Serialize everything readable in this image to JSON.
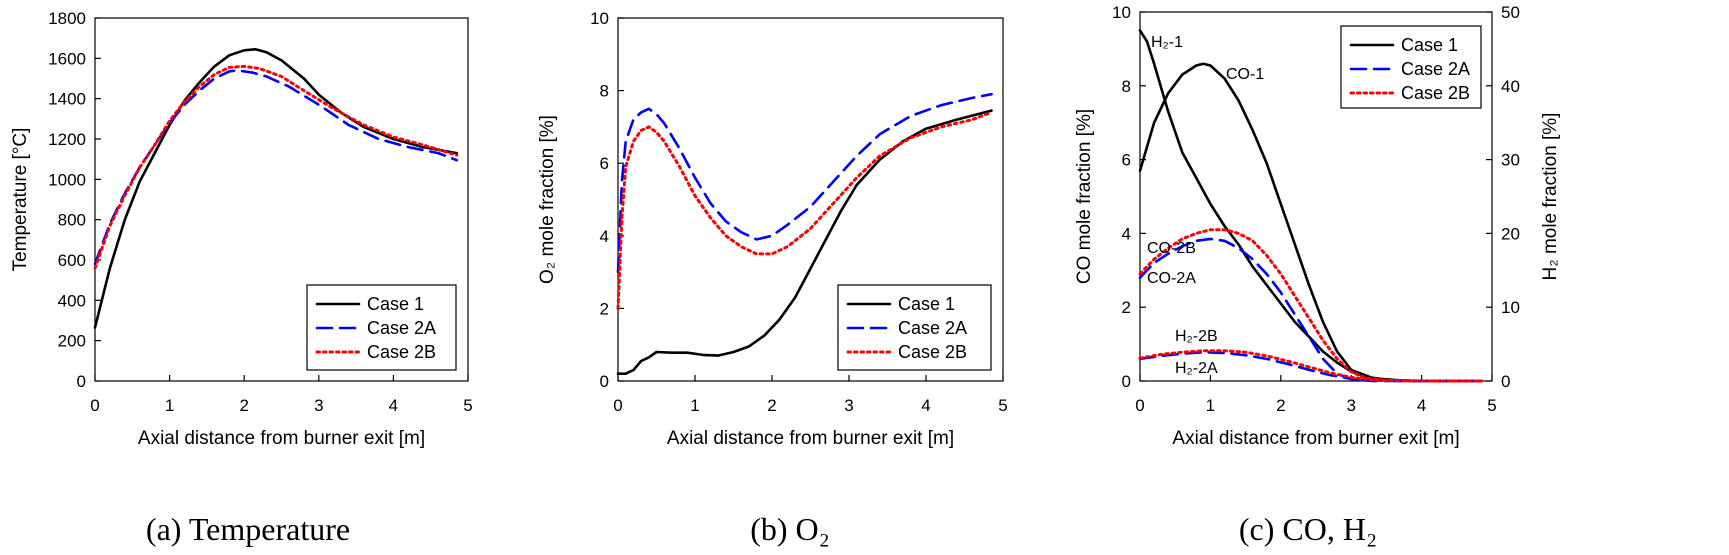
{
  "chart_data": [
    {
      "type": "line",
      "caption": "(a) Temperature",
      "xlabel": "Axial distance from burner exit [m]",
      "ylabel": "Temperature [°C]",
      "xlim": [
        0,
        5
      ],
      "ylim": [
        0,
        1800
      ],
      "xticks": [
        0,
        1,
        2,
        3,
        4,
        5
      ],
      "yticks": [
        0,
        200,
        400,
        600,
        800,
        1000,
        1200,
        1400,
        1600,
        1800
      ],
      "legend": {
        "position": "bottom-right"
      },
      "series": [
        {
          "name": "Case 1",
          "style": "solid",
          "color": "#000000",
          "x": [
            0,
            0.2,
            0.4,
            0.6,
            0.8,
            1.0,
            1.2,
            1.4,
            1.6,
            1.8,
            2.0,
            2.15,
            2.3,
            2.5,
            2.8,
            3.0,
            3.3,
            3.6,
            4.0,
            4.4,
            4.85
          ],
          "y": [
            265,
            560,
            800,
            990,
            1130,
            1270,
            1390,
            1480,
            1560,
            1615,
            1640,
            1645,
            1630,
            1590,
            1500,
            1420,
            1330,
            1260,
            1200,
            1160,
            1130
          ]
        },
        {
          "name": "Case 2A",
          "style": "dashed",
          "color": "#0000ff",
          "x": [
            0,
            0.2,
            0.4,
            0.6,
            0.8,
            1.0,
            1.2,
            1.4,
            1.6,
            1.8,
            1.9,
            2.1,
            2.3,
            2.6,
            3.0,
            3.4,
            3.8,
            4.2,
            4.6,
            4.85
          ],
          "y": [
            580,
            780,
            930,
            1060,
            1170,
            1280,
            1370,
            1440,
            1500,
            1535,
            1540,
            1530,
            1510,
            1460,
            1370,
            1270,
            1200,
            1160,
            1130,
            1095
          ]
        },
        {
          "name": "Case 2B",
          "style": "dotted",
          "color": "#ff0000",
          "x": [
            0,
            0.2,
            0.4,
            0.6,
            0.8,
            1.0,
            1.2,
            1.4,
            1.6,
            1.8,
            2.0,
            2.2,
            2.5,
            2.8,
            3.2,
            3.6,
            4.0,
            4.4,
            4.85
          ],
          "y": [
            560,
            770,
            920,
            1060,
            1170,
            1290,
            1385,
            1460,
            1520,
            1555,
            1560,
            1550,
            1510,
            1440,
            1350,
            1270,
            1210,
            1170,
            1120
          ]
        }
      ]
    },
    {
      "type": "line",
      "caption": "(b) O₂",
      "xlabel": "Axial distance from burner exit [m]",
      "ylabel": "O₂ mole fraction [%]",
      "xlim": [
        0,
        5
      ],
      "ylim": [
        0,
        10
      ],
      "xticks": [
        0,
        1,
        2,
        3,
        4,
        5
      ],
      "yticks": [
        0,
        2,
        4,
        6,
        8,
        10
      ],
      "legend": {
        "position": "bottom-right"
      },
      "series": [
        {
          "name": "Case 1",
          "style": "solid",
          "color": "#000000",
          "x": [
            0,
            0.1,
            0.2,
            0.3,
            0.4,
            0.5,
            0.7,
            0.9,
            1.1,
            1.3,
            1.5,
            1.7,
            1.9,
            2.1,
            2.3,
            2.5,
            2.7,
            2.9,
            3.1,
            3.4,
            3.7,
            4.0,
            4.4,
            4.85
          ],
          "y": [
            0.2,
            0.2,
            0.3,
            0.55,
            0.65,
            0.8,
            0.78,
            0.78,
            0.72,
            0.7,
            0.8,
            0.95,
            1.25,
            1.7,
            2.3,
            3.1,
            3.9,
            4.7,
            5.4,
            6.1,
            6.6,
            6.95,
            7.2,
            7.45
          ]
        },
        {
          "name": "Case 2A",
          "style": "dashed",
          "color": "#0000ff",
          "x": [
            0,
            0.05,
            0.1,
            0.2,
            0.3,
            0.4,
            0.5,
            0.6,
            0.8,
            1.0,
            1.2,
            1.4,
            1.6,
            1.8,
            2.0,
            2.2,
            2.5,
            2.8,
            3.1,
            3.4,
            3.8,
            4.2,
            4.6,
            4.85
          ],
          "y": [
            3.0,
            5.5,
            6.6,
            7.2,
            7.4,
            7.5,
            7.35,
            7.1,
            6.4,
            5.6,
            4.9,
            4.4,
            4.1,
            3.9,
            4.0,
            4.3,
            4.8,
            5.5,
            6.2,
            6.8,
            7.3,
            7.6,
            7.8,
            7.9
          ]
        },
        {
          "name": "Case 2B",
          "style": "dotted",
          "color": "#ff0000",
          "x": [
            0,
            0.05,
            0.1,
            0.2,
            0.3,
            0.4,
            0.5,
            0.6,
            0.8,
            1.0,
            1.2,
            1.4,
            1.6,
            1.8,
            2.0,
            2.2,
            2.5,
            2.8,
            3.1,
            3.4,
            3.8,
            4.2,
            4.6,
            4.85
          ],
          "y": [
            2.0,
            4.5,
            5.9,
            6.6,
            6.9,
            7.0,
            6.85,
            6.6,
            5.9,
            5.1,
            4.5,
            4.0,
            3.7,
            3.5,
            3.5,
            3.7,
            4.2,
            4.9,
            5.6,
            6.2,
            6.7,
            7.0,
            7.2,
            7.4
          ]
        }
      ]
    },
    {
      "type": "line",
      "caption": "(c) CO, H₂",
      "xlabel": "Axial distance from burner exit [m]",
      "ylabel": "CO mole fraction [%]",
      "y2label": "H₂ mole fraction [%]",
      "xlim": [
        0,
        5
      ],
      "ylim": [
        0,
        10
      ],
      "y2lim": [
        0,
        50
      ],
      "xticks": [
        0,
        1,
        2,
        3,
        4,
        5
      ],
      "yticks": [
        0,
        2,
        4,
        6,
        8,
        10
      ],
      "y2ticks": [
        0,
        10,
        20,
        30,
        40,
        50
      ],
      "legend": {
        "position": "top-right"
      },
      "series": [
        {
          "name": "Case 1",
          "style": "solid",
          "color": "#000000",
          "axis": "left",
          "label": "CO-1",
          "x": [
            0,
            0.2,
            0.4,
            0.6,
            0.8,
            0.9,
            1.0,
            1.2,
            1.4,
            1.6,
            1.8,
            2.0,
            2.2,
            2.4,
            2.6,
            2.8,
            3.0,
            3.3,
            3.6,
            4.0,
            4.5,
            4.85
          ],
          "y": [
            5.7,
            7.0,
            7.8,
            8.3,
            8.55,
            8.6,
            8.55,
            8.2,
            7.6,
            6.8,
            5.9,
            4.8,
            3.7,
            2.6,
            1.6,
            0.8,
            0.3,
            0.08,
            0.02,
            0.0,
            0.0,
            0.0
          ]
        },
        {
          "name": "Case 1",
          "style": "solid",
          "color": "#000000",
          "axis": "right",
          "label": "H₂-1",
          "x": [
            0,
            0.1,
            0.2,
            0.4,
            0.6,
            0.8,
            1.0,
            1.2,
            1.4,
            1.6,
            1.8,
            2.0,
            2.2,
            2.4,
            2.6,
            2.8,
            3.0,
            3.2,
            3.4,
            3.7,
            4.0,
            4.5,
            4.85
          ],
          "y": [
            47.5,
            46.0,
            43.0,
            36.5,
            31.0,
            27.5,
            24.0,
            21.0,
            18.5,
            15.5,
            13.0,
            10.5,
            8.0,
            6.0,
            4.0,
            2.5,
            1.3,
            0.6,
            0.3,
            0.1,
            0.0,
            0.0,
            0.0
          ]
        },
        {
          "name": "Case 2A",
          "style": "dashed",
          "color": "#0000ff",
          "axis": "left",
          "label": "CO-2A",
          "x": [
            0,
            0.2,
            0.4,
            0.6,
            0.8,
            1.0,
            1.2,
            1.4,
            1.6,
            1.8,
            2.0,
            2.2,
            2.4,
            2.6,
            2.8,
            3.0,
            3.3,
            3.6,
            4.0,
            4.85
          ],
          "y": [
            2.8,
            3.2,
            3.45,
            3.65,
            3.8,
            3.85,
            3.8,
            3.6,
            3.3,
            2.9,
            2.4,
            1.8,
            1.2,
            0.6,
            0.2,
            0.05,
            0.0,
            0.0,
            0.0,
            0.0
          ]
        },
        {
          "name": "Case 2B",
          "style": "dotted",
          "color": "#ff0000",
          "axis": "left",
          "label": "CO-2B",
          "x": [
            0,
            0.2,
            0.4,
            0.6,
            0.8,
            1.0,
            1.2,
            1.4,
            1.6,
            1.8,
            2.0,
            2.2,
            2.4,
            2.6,
            2.8,
            3.0,
            3.2,
            3.5,
            4.0,
            4.85
          ],
          "y": [
            2.9,
            3.3,
            3.6,
            3.85,
            4.0,
            4.1,
            4.1,
            4.0,
            3.8,
            3.4,
            2.9,
            2.3,
            1.7,
            1.1,
            0.6,
            0.25,
            0.08,
            0.02,
            0.0,
            0.0
          ]
        },
        {
          "name": "Case 2A",
          "style": "dashed",
          "color": "#0000ff",
          "axis": "right",
          "label": "H₂-2A",
          "x": [
            0,
            0.3,
            0.6,
            0.9,
            1.2,
            1.5,
            1.8,
            2.1,
            2.4,
            2.7,
            3.0,
            3.3,
            3.7,
            4.2,
            4.85
          ],
          "y": [
            3.0,
            3.4,
            3.7,
            3.9,
            3.8,
            3.5,
            3.0,
            2.3,
            1.5,
            0.8,
            0.3,
            0.1,
            0.0,
            0.0,
            0.0
          ]
        },
        {
          "name": "Case 2B",
          "style": "dotted",
          "color": "#ff0000",
          "axis": "right",
          "label": "H₂-2B",
          "x": [
            0,
            0.3,
            0.6,
            0.9,
            1.2,
            1.5,
            1.8,
            2.1,
            2.4,
            2.7,
            3.0,
            3.3,
            3.7,
            4.2,
            4.85
          ],
          "y": [
            3.1,
            3.6,
            3.9,
            4.1,
            4.1,
            3.9,
            3.4,
            2.7,
            1.9,
            1.1,
            0.5,
            0.15,
            0.03,
            0.0,
            0.0
          ]
        }
      ],
      "annotations": [
        "H₂-1",
        "CO-1",
        "CO-2B",
        "CO-2A",
        "H₂-2B",
        "H₂-2A"
      ]
    }
  ]
}
